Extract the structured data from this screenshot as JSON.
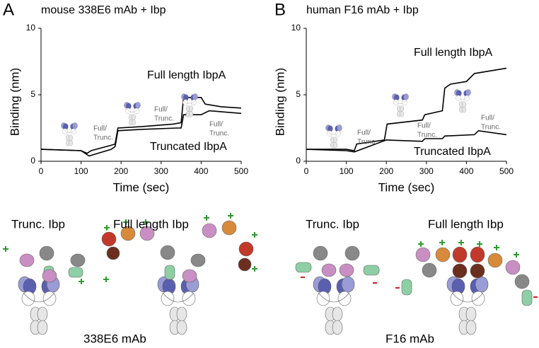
{
  "chart_data": [
    {
      "type": "line",
      "panel": "A",
      "title": "mouse 338E6 mAb + Ibp",
      "x_label": "Time (sec)",
      "y_label": "Binding (nm)",
      "xlim": [
        0,
        500
      ],
      "ylim": [
        0,
        10
      ],
      "xticks": [
        0,
        100,
        200,
        300,
        400,
        500
      ],
      "yticks": [
        0,
        5,
        10
      ],
      "series": [
        {
          "name": "Full length IbpA",
          "color": "#000000",
          "x": [
            0,
            100,
            115,
            125,
            175,
            185,
            192,
            250,
            330,
            350,
            356,
            400,
            410,
            450,
            500
          ],
          "values": [
            0.9,
            0.8,
            0.6,
            0.8,
            1.2,
            1.3,
            2.5,
            2.6,
            2.8,
            2.9,
            4.8,
            4.8,
            4.3,
            4.1,
            4.0
          ]
        },
        {
          "name": "Truncated IbpA",
          "color": "#000000",
          "x": [
            0,
            100,
            120,
            175,
            185,
            192,
            250,
            340,
            350,
            356,
            400,
            420,
            500
          ],
          "values": [
            0.9,
            0.8,
            0.4,
            0.9,
            1.1,
            2.3,
            2.4,
            2.5,
            2.5,
            3.5,
            3.5,
            3.8,
            3.6
          ]
        }
      ],
      "annotations": [
        {
          "lines": [
            "Full/",
            "Trunc."
          ]
        },
        {
          "lines": [
            "Full/",
            "Trunc."
          ]
        },
        {
          "lines": [
            "Full/",
            "Trunc."
          ]
        }
      ]
    },
    {
      "type": "line",
      "panel": "B",
      "title": "human F16 mAb + Ibp",
      "x_label": "Time (sec)",
      "y_label": "Binding (nm)",
      "xlim": [
        0,
        500
      ],
      "ylim": [
        0,
        10
      ],
      "xticks": [
        0,
        100,
        200,
        300,
        400,
        500
      ],
      "yticks": [
        0,
        5,
        10
      ],
      "series": [
        {
          "name": "Full length IbpA",
          "color": "#000000",
          "x": [
            0,
            100,
            120,
            126,
            195,
            202,
            290,
            296,
            340,
            346,
            360,
            400,
            420,
            500
          ],
          "values": [
            0.9,
            0.9,
            0.8,
            1.3,
            1.6,
            2.8,
            3.1,
            3.5,
            3.8,
            5.5,
            5.8,
            6.0,
            6.6,
            7.0
          ]
        },
        {
          "name": "Truncated IbpA",
          "color": "#000000",
          "x": [
            0,
            100,
            120,
            200,
            290,
            296,
            340,
            346,
            420,
            430,
            500
          ],
          "values": [
            0.9,
            0.8,
            0.7,
            1.6,
            1.5,
            1.7,
            1.7,
            1.9,
            2.0,
            2.3,
            2.0
          ]
        }
      ],
      "annotations": [
        {
          "lines": [
            "Full/",
            "Trunc."
          ]
        },
        {
          "lines": [
            "Full/",
            "Trunc."
          ]
        },
        {
          "lines": [
            "Full/",
            "Trunc."
          ]
        }
      ]
    }
  ],
  "diagrams": {
    "left": {
      "trunc_label": "Trunc. Ibp",
      "full_label": "Full length Ibp",
      "antibody": "338E6 mAb"
    },
    "right": {
      "trunc_label": "Trunc. Ibp",
      "full_label": "Full length Ibp",
      "antibody": "F16 mAb"
    }
  }
}
